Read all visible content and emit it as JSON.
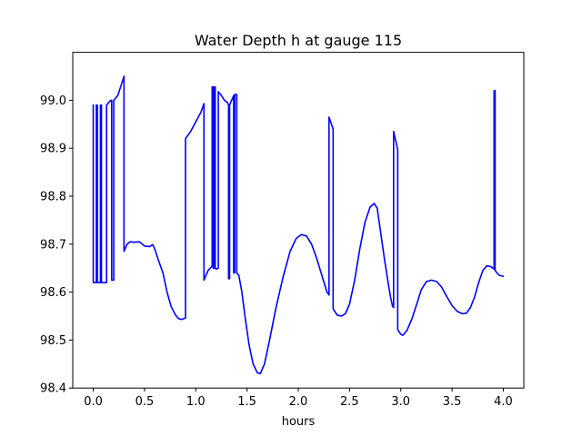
{
  "chart_data": {
    "type": "line",
    "title": "Water Depth h at gauge 115",
    "xlabel": "hours",
    "ylabel": "",
    "xlim": [
      -0.2,
      4.2
    ],
    "ylim": [
      98.4,
      99.1
    ],
    "xticks": [
      {
        "value": 0.0,
        "label": "0.0"
      },
      {
        "value": 0.5,
        "label": "0.5"
      },
      {
        "value": 1.0,
        "label": "1.0"
      },
      {
        "value": 1.5,
        "label": "1.5"
      },
      {
        "value": 2.0,
        "label": "2.0"
      },
      {
        "value": 2.5,
        "label": "2.5"
      },
      {
        "value": 3.0,
        "label": "3.0"
      },
      {
        "value": 3.5,
        "label": "3.5"
      },
      {
        "value": 4.0,
        "label": "4.0"
      }
    ],
    "yticks": [
      {
        "value": 98.4,
        "label": "98.4"
      },
      {
        "value": 98.5,
        "label": "98.5"
      },
      {
        "value": 98.6,
        "label": "98.6"
      },
      {
        "value": 98.7,
        "label": "98.7"
      },
      {
        "value": 98.8,
        "label": "98.8"
      },
      {
        "value": 98.9,
        "label": "98.9"
      },
      {
        "value": 99.0,
        "label": "99.0"
      }
    ],
    "grid": false,
    "legend": "none",
    "series": [
      {
        "color": "#0000ff",
        "points": [
          [
            0.0,
            98.99
          ],
          [
            0.0,
            98.62
          ],
          [
            0.03,
            98.62
          ],
          [
            0.03,
            98.99
          ],
          [
            0.04,
            98.99
          ],
          [
            0.04,
            98.62
          ],
          [
            0.07,
            98.62
          ],
          [
            0.07,
            98.99
          ],
          [
            0.08,
            98.99
          ],
          [
            0.08,
            98.62
          ],
          [
            0.13,
            98.62
          ],
          [
            0.13,
            98.99
          ],
          [
            0.17,
            99.0
          ],
          [
            0.18,
            99.0
          ],
          [
            0.18,
            98.625
          ],
          [
            0.2,
            98.625
          ],
          [
            0.2,
            99.0
          ],
          [
            0.24,
            99.01
          ],
          [
            0.27,
            99.03
          ],
          [
            0.3,
            99.05
          ],
          [
            0.3,
            98.685
          ],
          [
            0.33,
            98.7
          ],
          [
            0.36,
            98.705
          ],
          [
            0.4,
            98.704
          ],
          [
            0.45,
            98.705
          ],
          [
            0.5,
            98.696
          ],
          [
            0.55,
            98.695
          ],
          [
            0.58,
            98.699
          ],
          [
            0.6,
            98.69
          ],
          [
            0.63,
            98.67
          ],
          [
            0.68,
            98.64
          ],
          [
            0.72,
            98.6
          ],
          [
            0.76,
            98.57
          ],
          [
            0.8,
            98.553
          ],
          [
            0.83,
            98.545
          ],
          [
            0.86,
            98.543
          ],
          [
            0.9,
            98.546
          ],
          [
            0.9,
            98.92
          ],
          [
            0.95,
            98.935
          ],
          [
            1.0,
            98.955
          ],
          [
            1.05,
            98.975
          ],
          [
            1.08,
            98.993
          ],
          [
            1.08,
            98.625
          ],
          [
            1.12,
            98.645
          ],
          [
            1.15,
            98.652
          ],
          [
            1.16,
            98.655
          ],
          [
            1.16,
            99.028
          ],
          [
            1.17,
            99.028
          ],
          [
            1.17,
            98.65
          ],
          [
            1.18,
            98.65
          ],
          [
            1.18,
            99.028
          ],
          [
            1.19,
            99.028
          ],
          [
            1.19,
            98.65
          ],
          [
            1.2,
            98.648
          ],
          [
            1.22,
            98.65
          ],
          [
            1.22,
            99.018
          ],
          [
            1.25,
            99.01
          ],
          [
            1.28,
            99.0
          ],
          [
            1.31,
            98.995
          ],
          [
            1.32,
            98.99
          ],
          [
            1.32,
            98.628
          ],
          [
            1.33,
            98.628
          ],
          [
            1.33,
            98.99
          ],
          [
            1.35,
            99.0
          ],
          [
            1.37,
            99.01
          ],
          [
            1.37,
            98.64
          ],
          [
            1.38,
            98.64
          ],
          [
            1.38,
            99.012
          ],
          [
            1.4,
            99.012
          ],
          [
            1.4,
            98.64
          ],
          [
            1.42,
            98.635
          ],
          [
            1.45,
            98.6
          ],
          [
            1.48,
            98.55
          ],
          [
            1.52,
            98.49
          ],
          [
            1.56,
            98.45
          ],
          [
            1.6,
            98.432
          ],
          [
            1.63,
            98.43
          ],
          [
            1.67,
            98.45
          ],
          [
            1.72,
            98.5
          ],
          [
            1.78,
            98.565
          ],
          [
            1.85,
            98.63
          ],
          [
            1.92,
            98.685
          ],
          [
            1.98,
            98.712
          ],
          [
            2.03,
            98.72
          ],
          [
            2.08,
            98.717
          ],
          [
            2.13,
            98.7
          ],
          [
            2.18,
            98.67
          ],
          [
            2.23,
            98.635
          ],
          [
            2.28,
            98.6
          ],
          [
            2.3,
            98.594
          ],
          [
            2.3,
            98.965
          ],
          [
            2.34,
            98.94
          ],
          [
            2.34,
            98.565
          ],
          [
            2.38,
            98.552
          ],
          [
            2.42,
            98.55
          ],
          [
            2.46,
            98.555
          ],
          [
            2.5,
            98.575
          ],
          [
            2.55,
            98.625
          ],
          [
            2.6,
            98.69
          ],
          [
            2.65,
            98.745
          ],
          [
            2.7,
            98.777
          ],
          [
            2.74,
            98.785
          ],
          [
            2.77,
            98.775
          ],
          [
            2.8,
            98.73
          ],
          [
            2.84,
            98.67
          ],
          [
            2.88,
            98.615
          ],
          [
            2.9,
            98.59
          ],
          [
            2.92,
            98.57
          ],
          [
            2.93,
            98.568
          ],
          [
            2.93,
            98.935
          ],
          [
            2.97,
            98.897
          ],
          [
            2.97,
            98.522
          ],
          [
            3.0,
            98.512
          ],
          [
            3.02,
            98.51
          ],
          [
            3.06,
            98.52
          ],
          [
            3.11,
            98.545
          ],
          [
            3.16,
            98.578
          ],
          [
            3.2,
            98.605
          ],
          [
            3.25,
            98.622
          ],
          [
            3.3,
            98.625
          ],
          [
            3.35,
            98.622
          ],
          [
            3.4,
            98.61
          ],
          [
            3.45,
            98.59
          ],
          [
            3.5,
            98.572
          ],
          [
            3.55,
            98.56
          ],
          [
            3.6,
            98.555
          ],
          [
            3.64,
            98.556
          ],
          [
            3.68,
            98.568
          ],
          [
            3.72,
            98.59
          ],
          [
            3.76,
            98.62
          ],
          [
            3.8,
            98.645
          ],
          [
            3.84,
            98.655
          ],
          [
            3.88,
            98.653
          ],
          [
            3.91,
            98.648
          ],
          [
            3.91,
            99.02
          ],
          [
            3.92,
            99.02
          ],
          [
            3.92,
            98.645
          ],
          [
            3.96,
            98.635
          ],
          [
            4.0,
            98.633
          ]
        ]
      }
    ]
  }
}
